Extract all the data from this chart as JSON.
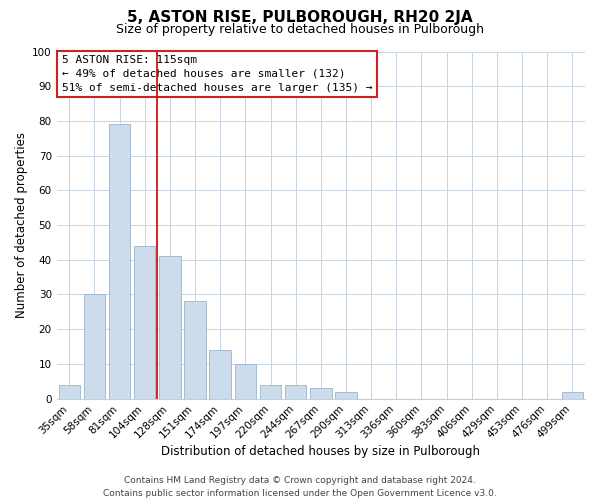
{
  "title": "5, ASTON RISE, PULBOROUGH, RH20 2JA",
  "subtitle": "Size of property relative to detached houses in Pulborough",
  "xlabel": "Distribution of detached houses by size in Pulborough",
  "ylabel": "Number of detached properties",
  "bar_labels": [
    "35sqm",
    "58sqm",
    "81sqm",
    "104sqm",
    "128sqm",
    "151sqm",
    "174sqm",
    "197sqm",
    "220sqm",
    "244sqm",
    "267sqm",
    "290sqm",
    "313sqm",
    "336sqm",
    "360sqm",
    "383sqm",
    "406sqm",
    "429sqm",
    "453sqm",
    "476sqm",
    "499sqm"
  ],
  "bar_values": [
    4,
    30,
    79,
    44,
    41,
    28,
    14,
    10,
    4,
    4,
    3,
    2,
    0,
    0,
    0,
    0,
    0,
    0,
    0,
    0,
    2
  ],
  "bar_color": "#ccdcec",
  "bar_edge_color": "#9ab4cc",
  "ylim": [
    0,
    100
  ],
  "yticks": [
    0,
    10,
    20,
    30,
    40,
    50,
    60,
    70,
    80,
    90,
    100
  ],
  "vline_x_index": 3.5,
  "vline_color": "#cc0000",
  "annotation_line1": "5 ASTON RISE: 115sqm",
  "annotation_line2": "← 49% of detached houses are smaller (132)",
  "annotation_line3": "51% of semi-detached houses are larger (135) →",
  "annotation_box_color": "#ffffff",
  "annotation_box_edge": "#cc2222",
  "footer_line1": "Contains HM Land Registry data © Crown copyright and database right 2024.",
  "footer_line2": "Contains public sector information licensed under the Open Government Licence v3.0.",
  "background_color": "#ffffff",
  "grid_color": "#c8d4e0",
  "title_fontsize": 11,
  "subtitle_fontsize": 9,
  "axis_label_fontsize": 8.5,
  "tick_fontsize": 7.5,
  "annotation_fontsize": 8,
  "footer_fontsize": 6.5
}
